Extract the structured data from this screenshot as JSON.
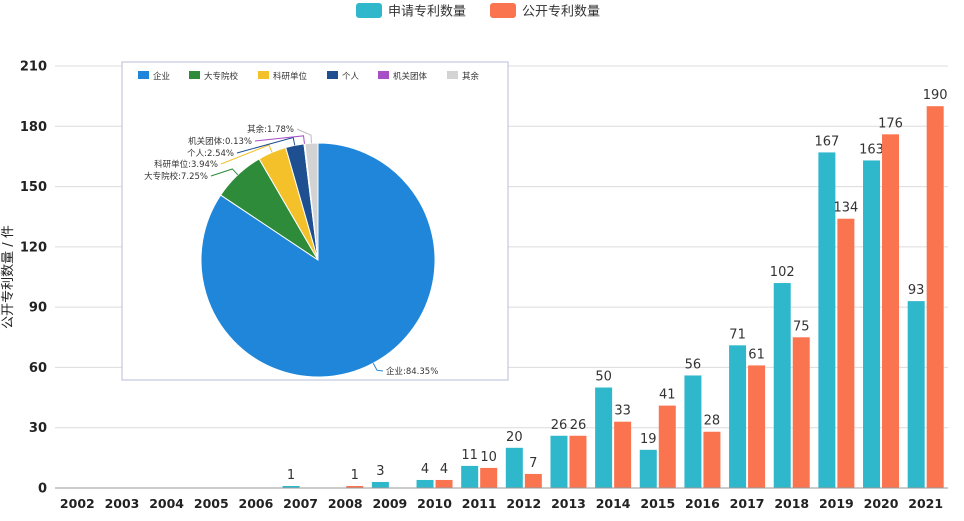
{
  "chart_data": [
    {
      "type": "bar",
      "ylabel": "公开专利数量 / 件",
      "ylim": [
        0,
        210
      ],
      "yticks": [
        0,
        30,
        60,
        90,
        120,
        150,
        180,
        210
      ],
      "categories": [
        "2002",
        "2003",
        "2004",
        "2005",
        "2006",
        "2007",
        "2008",
        "2009",
        "2010",
        "2011",
        "2012",
        "2013",
        "2014",
        "2015",
        "2016",
        "2017",
        "2018",
        "2019",
        "2020",
        "2021"
      ],
      "legend_position": "top-center",
      "grid": true,
      "series": [
        {
          "name": "申请专利数量",
          "color": "#2fb8cc",
          "values": [
            0,
            0,
            0,
            0,
            0,
            1,
            0,
            3,
            4,
            11,
            20,
            26,
            50,
            19,
            56,
            71,
            102,
            167,
            163,
            93
          ]
        },
        {
          "name": "公开专利数量",
          "color": "#fb7450",
          "values": [
            0,
            0,
            0,
            0,
            0,
            0,
            1,
            0,
            4,
            10,
            7,
            26,
            33,
            41,
            28,
            61,
            75,
            134,
            176,
            190
          ]
        }
      ],
      "value_labels": [
        [
          null,
          null,
          null,
          null,
          null,
          1,
          null,
          3,
          4,
          11,
          20,
          26,
          50,
          19,
          56,
          71,
          102,
          167,
          163,
          93
        ],
        [
          null,
          null,
          null,
          null,
          null,
          null,
          1,
          null,
          4,
          10,
          7,
          26,
          33,
          41,
          28,
          61,
          75,
          134,
          176,
          190
        ]
      ]
    },
    {
      "type": "pie",
      "legend_position": "top",
      "slices": [
        {
          "name": "企业",
          "value": 84.35,
          "label": "企业:84.35%",
          "color": "#1f86d9"
        },
        {
          "name": "大专院校",
          "value": 7.25,
          "label": "大专院校:7.25%",
          "color": "#2e8b3a"
        },
        {
          "name": "科研单位",
          "value": 3.94,
          "label": "科研单位:3.94%",
          "color": "#f5c12b"
        },
        {
          "name": "个人",
          "value": 2.54,
          "label": "个人:2.54%",
          "color": "#1d4f91"
        },
        {
          "name": "机关团体",
          "value": 0.13,
          "label": "机关团体:0.13%",
          "color": "#a64fc6"
        },
        {
          "name": "其余",
          "value": 1.78,
          "label": "其余:1.78%",
          "color": "#d3d3d3"
        }
      ]
    }
  ]
}
